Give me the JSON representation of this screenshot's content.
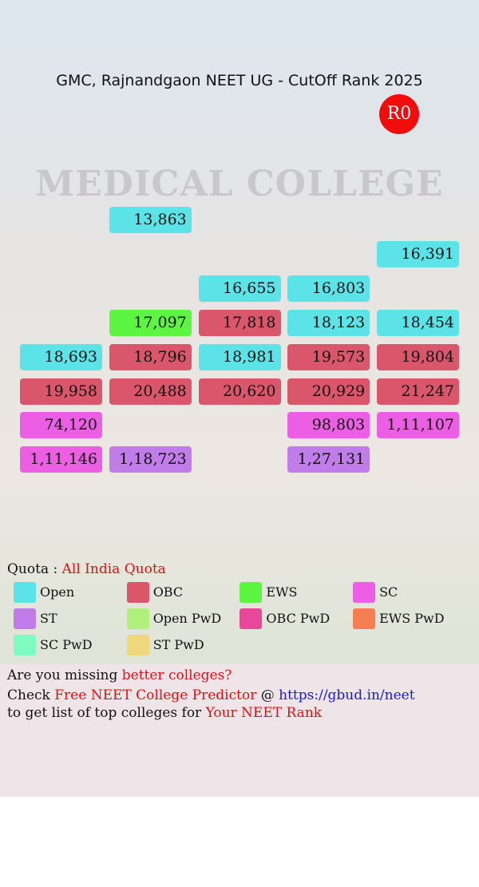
{
  "header": {
    "title": "GMC, Rajnandgaon NEET UG - CutOff Rank 2025",
    "badge": "R0"
  },
  "background_text": "MEDICAL COLLEGE",
  "grid": {
    "rows": [
      [
        null,
        {
          "text": "13,863",
          "color": "#5ce3e8"
        },
        null,
        null,
        null
      ],
      [
        null,
        null,
        null,
        null,
        {
          "text": "16,391",
          "color": "#5ce3e8"
        }
      ],
      [
        null,
        null,
        {
          "text": "16,655",
          "color": "#5ce3e8"
        },
        {
          "text": "16,803",
          "color": "#5ce3e8"
        },
        null
      ],
      [
        null,
        {
          "text": "17,097",
          "color": "#5cf542"
        },
        {
          "text": "17,818",
          "color": "#d9566b"
        },
        {
          "text": "18,123",
          "color": "#5ce3e8"
        },
        {
          "text": "18,454",
          "color": "#5ce3e8"
        }
      ],
      [
        {
          "text": "18,693",
          "color": "#5ce3e8"
        },
        {
          "text": "18,796",
          "color": "#d9566b"
        },
        {
          "text": "18,981",
          "color": "#5ce3e8"
        },
        {
          "text": "19,573",
          "color": "#d9566b"
        },
        {
          "text": "19,804",
          "color": "#d9566b"
        }
      ],
      [
        {
          "text": "19,958",
          "color": "#d9566b"
        },
        {
          "text": "20,488",
          "color": "#d9566b"
        },
        {
          "text": "20,620",
          "color": "#d9566b"
        },
        {
          "text": "20,929",
          "color": "#d9566b"
        },
        {
          "text": "21,247",
          "color": "#d9566b"
        }
      ],
      [
        {
          "text": "74,120",
          "color": "#ec5fe5"
        },
        null,
        null,
        {
          "text": "98,803",
          "color": "#ec5fe5"
        },
        {
          "text": "1,11,107",
          "color": "#ec5fe5"
        }
      ],
      [
        {
          "text": "1,11,146",
          "color": "#ec5fe5"
        },
        {
          "text": "1,18,723",
          "color": "#c07ce8"
        },
        null,
        {
          "text": "1,27,131",
          "color": "#c07ce8"
        },
        null
      ]
    ]
  },
  "legend": {
    "label": "Quota :",
    "quota": "All India Quota",
    "items": [
      {
        "label": "Open",
        "color": "#5ce3e8"
      },
      {
        "label": "OBC",
        "color": "#d9566b"
      },
      {
        "label": "EWS",
        "color": "#5cf542"
      },
      {
        "label": "SC",
        "color": "#ec5fe5"
      },
      {
        "label": "ST",
        "color": "#c07ce8"
      },
      {
        "label": "Open PwD",
        "color": "#b0ef7a"
      },
      {
        "label": "OBC PwD",
        "color": "#e8489a"
      },
      {
        "label": "EWS PwD",
        "color": "#f57f50"
      },
      {
        "label": "SC PwD",
        "color": "#7dfbc0"
      },
      {
        "label": "ST PwD",
        "color": "#eed77d"
      }
    ]
  },
  "footer": {
    "line1": [
      "Are you missing ",
      "better colleges?"
    ],
    "line2": [
      "Check ",
      "Free NEET College Predictor",
      " @ ",
      "https://gbud.in/neet"
    ],
    "line3": [
      "to get list of top colleges for ",
      "Your NEET Rank"
    ]
  }
}
